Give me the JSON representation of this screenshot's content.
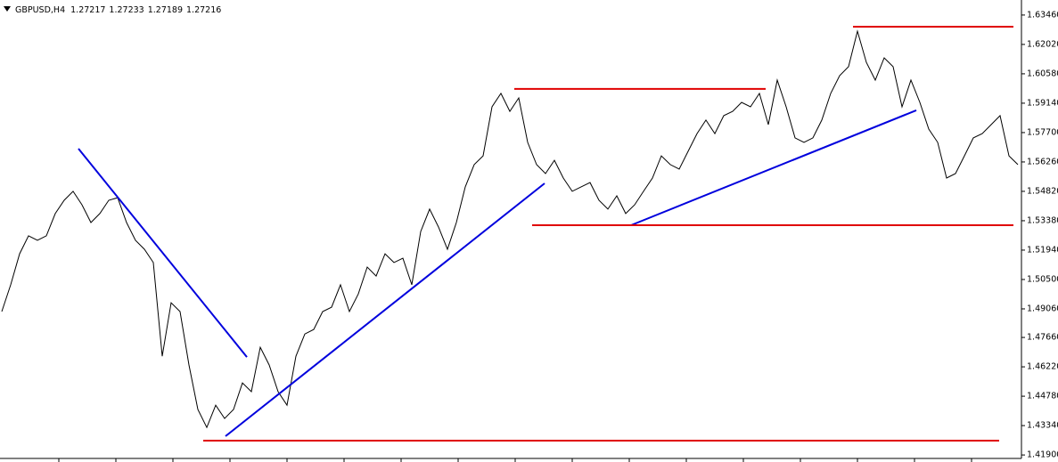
{
  "chart_data": {
    "type": "line",
    "symbol": "GBPUSD,H4",
    "ohlc": [
      1.27217,
      1.27233,
      1.27189,
      1.27216
    ],
    "series": [
      {
        "color": "#000000",
        "values": [
          1.4893,
          1.5024,
          1.5176,
          1.5264,
          1.5242,
          1.5264,
          1.5373,
          1.5438,
          1.5482,
          1.5416,
          1.5329,
          1.5373,
          1.5438,
          1.5451,
          1.5329,
          1.5242,
          1.5198,
          1.5133,
          1.4674,
          1.4936,
          1.4893,
          1.4631,
          1.4413,
          1.4325,
          1.4434,
          1.4369,
          1.4413,
          1.4543,
          1.45,
          1.4718,
          1.4631,
          1.45,
          1.4434,
          1.4674,
          1.4783,
          1.4805,
          1.4893,
          1.4914,
          1.5024,
          1.4893,
          1.4979,
          1.5111,
          1.5067,
          1.5176,
          1.5133,
          1.5154,
          1.5024,
          1.5285,
          1.5395,
          1.5307,
          1.5198,
          1.5329,
          1.5504,
          1.5613,
          1.5656,
          1.5896,
          1.5962,
          1.5874,
          1.594,
          1.5722,
          1.5613,
          1.5569,
          1.5634,
          1.5547,
          1.5482,
          1.5504,
          1.5525,
          1.5438,
          1.5395,
          1.546,
          1.5373,
          1.5416,
          1.5482,
          1.5547,
          1.5656,
          1.5613,
          1.5591,
          1.5678,
          1.5765,
          1.5831,
          1.5765,
          1.5853,
          1.5874,
          1.5918,
          1.5896,
          1.5962,
          1.5809,
          1.6027,
          1.5896,
          1.5744,
          1.5722,
          1.5744,
          1.5831,
          1.5962,
          1.6049,
          1.6093,
          1.6267,
          1.6114,
          1.6027,
          1.6136,
          1.6093,
          1.5896,
          1.6027,
          1.5918,
          1.5787,
          1.5722,
          1.5547,
          1.5569,
          1.5656,
          1.5744,
          1.5765,
          1.5809,
          1.5853,
          1.5656,
          1.5613
        ]
      }
    ],
    "trendlines": [
      {
        "color": "#0000dd",
        "x": [
          8.6,
          27.5
        ],
        "y": [
          1.5691,
          1.467
        ]
      },
      {
        "color": "#0000dd",
        "x": [
          25.1,
          60.9
        ],
        "y": [
          1.4282,
          1.5521
        ]
      },
      {
        "color": "#0000dd",
        "x": [
          70.6,
          102.6
        ],
        "y": [
          1.5316,
          1.5879
        ]
      },
      {
        "color": "#e00000",
        "x": [
          22.6,
          111.9
        ],
        "y": [
          1.426,
          1.426
        ]
      },
      {
        "color": "#e00000",
        "x": [
          59.5,
          113.5
        ],
        "y": [
          1.5316,
          1.5316
        ]
      },
      {
        "color": "#e00000",
        "x": [
          57.5,
          85.7
        ],
        "y": [
          1.5984,
          1.5984
        ]
      },
      {
        "color": "#e00000",
        "x": [
          95.5,
          113.5
        ],
        "y": [
          1.6289,
          1.6289
        ]
      }
    ],
    "xlim": [
      0,
      114.3
    ],
    "ylim": [
      1.4173,
      1.6411
    ],
    "yticks": [
      {
        "value": 1.6346,
        "label": "1.63460"
      },
      {
        "value": 1.6202,
        "label": "1.62020"
      },
      {
        "value": 1.6058,
        "label": "1.60580"
      },
      {
        "value": 1.5914,
        "label": "1.59140"
      },
      {
        "value": 1.577,
        "label": "1.57700"
      },
      {
        "value": 1.5626,
        "label": "1.56260"
      },
      {
        "value": 1.5482,
        "label": "1.54820"
      },
      {
        "value": 1.5338,
        "label": "1.53380"
      },
      {
        "value": 1.5194,
        "label": "1.51940"
      },
      {
        "value": 1.505,
        "label": "1.50500"
      },
      {
        "value": 1.4906,
        "label": "1.49060"
      },
      {
        "value": 1.4766,
        "label": "1.47660"
      },
      {
        "value": 1.4622,
        "label": "1.46220"
      },
      {
        "value": 1.4478,
        "label": "1.44780"
      },
      {
        "value": 1.4334,
        "label": "1.43340"
      },
      {
        "value": 1.419,
        "label": "1.41900"
      }
    ]
  }
}
